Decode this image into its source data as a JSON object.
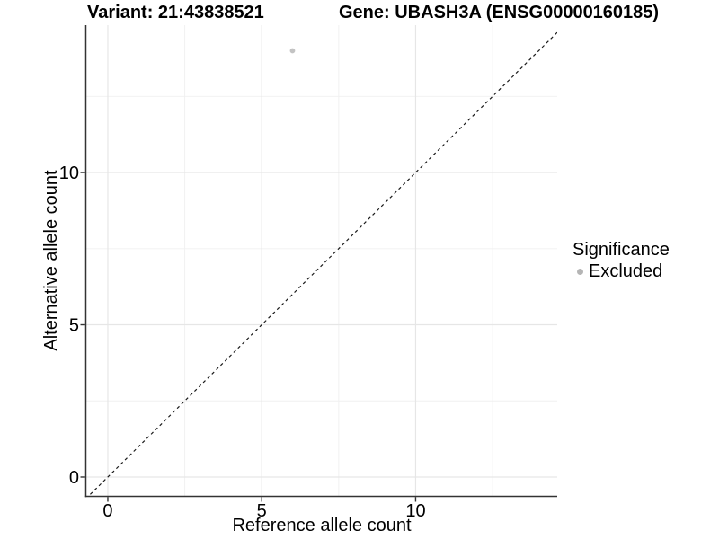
{
  "chart_data": {
    "type": "scatter",
    "titles": {
      "variant": "Variant: 21:43838521",
      "gene": "Gene: UBASH3A (ENSG00000160185)"
    },
    "xlabel": "Reference allele count",
    "ylabel": "Alternative allele count",
    "xlim": [
      -0.7,
      14.6
    ],
    "ylim": [
      -0.62,
      14.84
    ],
    "x_ticks": [
      0,
      5,
      10
    ],
    "y_ticks": [
      0,
      5,
      10
    ],
    "x_minor_ticks": [
      2.5,
      7.5,
      12.5
    ],
    "y_minor_ticks": [
      2.5,
      7.5,
      12.5
    ],
    "grid": true,
    "points": [
      {
        "x": 6,
        "y": 14,
        "series": "Excluded"
      }
    ],
    "reference_line": {
      "type": "identity",
      "slope": 1,
      "intercept": 0,
      "style": "dashed",
      "color": "#1a1a1a"
    },
    "legend": {
      "position": "right",
      "title": "Significance",
      "entries": [
        {
          "label": "Excluded",
          "color": "#b5b5b5"
        }
      ]
    },
    "colors": {
      "point": "#bdbdbd",
      "axis_line": "#333333",
      "tick_text": "#000000",
      "grid_major": "#e6e6e6",
      "grid_minor": "#f0f0f0",
      "background": "#ffffff"
    }
  }
}
